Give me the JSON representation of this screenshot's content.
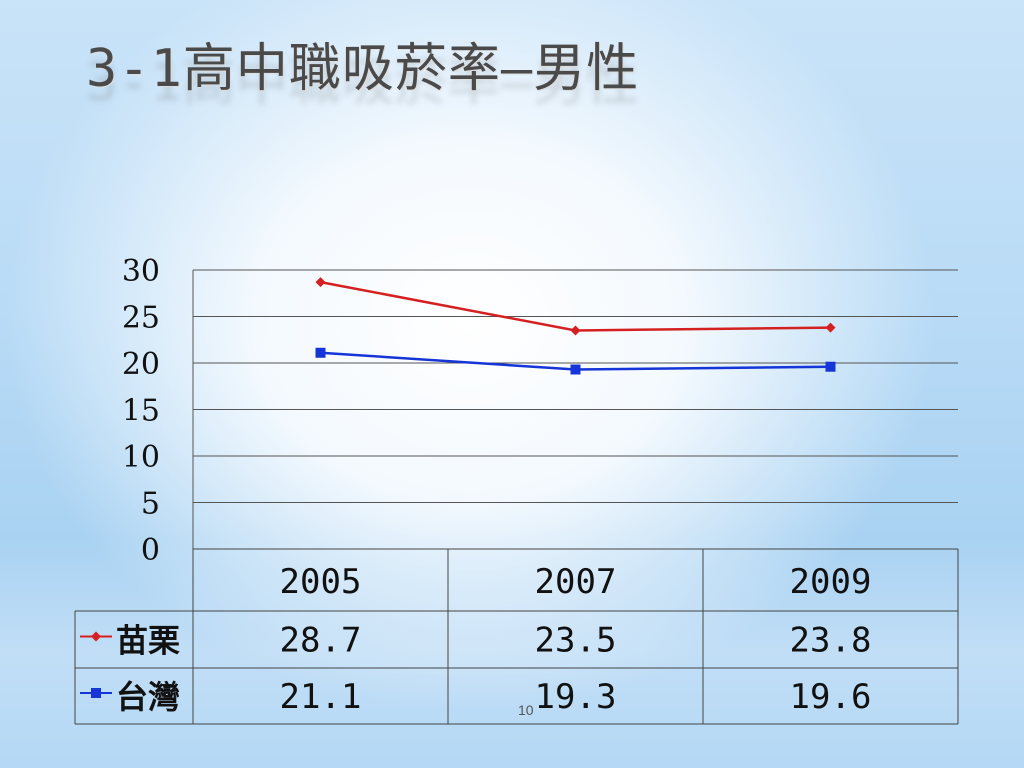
{
  "title": "3-1高中職吸菸率—男性",
  "slide_number": "10",
  "chart_data": {
    "type": "line",
    "categories": [
      "2005",
      "2007",
      "2009"
    ],
    "ylim": [
      0,
      30
    ],
    "y_ticks": [
      "0",
      "5",
      "10",
      "15",
      "20",
      "25",
      "30"
    ],
    "grid": true,
    "legend": "table-left",
    "series": [
      {
        "name": "苗栗",
        "values": [
          28.7,
          23.5,
          23.8
        ],
        "labels": [
          "28.7",
          "23.5",
          "23.8"
        ],
        "color": "#d42020",
        "marker": "diamond"
      },
      {
        "name": "台灣",
        "values": [
          21.1,
          19.3,
          19.6
        ],
        "labels": [
          "21.1",
          "19.3",
          "19.6"
        ],
        "color": "#1535d8",
        "marker": "square"
      }
    ]
  }
}
